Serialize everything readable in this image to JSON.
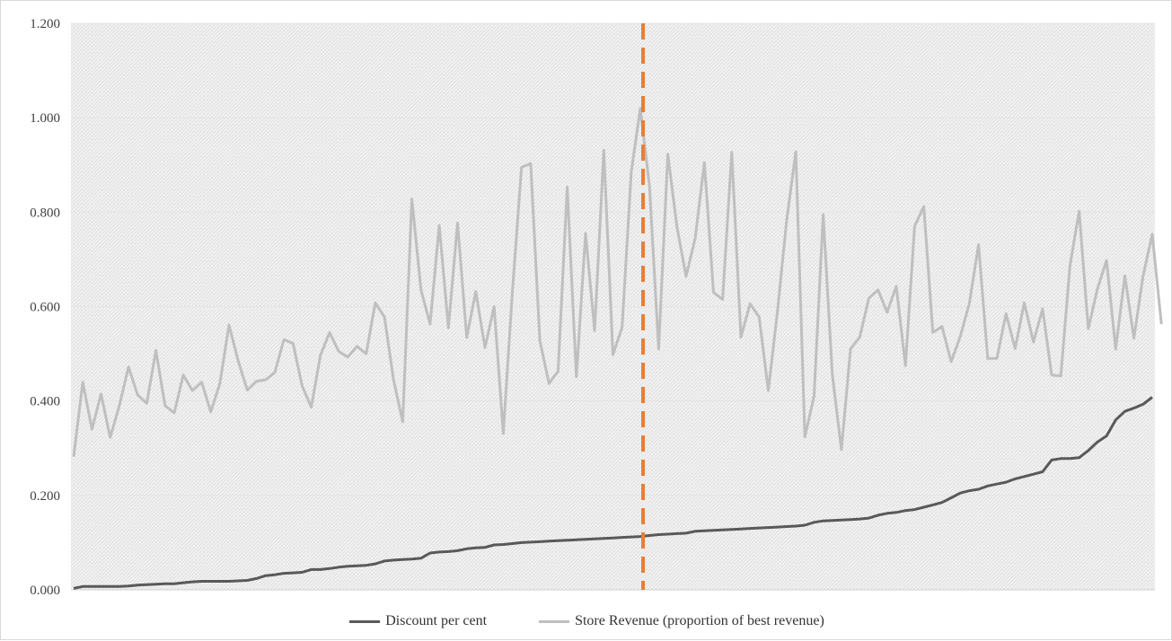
{
  "chart_data": {
    "type": "line",
    "title": "",
    "xlabel": "",
    "ylabel": "",
    "ylim": [
      0,
      1.2
    ],
    "yticks": [
      "0.000",
      "0.200",
      "0.400",
      "0.600",
      "0.800",
      "1.000",
      "1.200"
    ],
    "grid": true,
    "legend_position": "bottom",
    "marker_line": {
      "index": 62,
      "color": "#ed7d31",
      "style": "dashed"
    },
    "series": [
      {
        "name": "Discount per cent",
        "color": "#595959",
        "values": [
          0.003,
          0.007,
          0.007,
          0.007,
          0.007,
          0.007,
          0.008,
          0.01,
          0.011,
          0.012,
          0.013,
          0.013,
          0.015,
          0.017,
          0.018,
          0.018,
          0.018,
          0.018,
          0.019,
          0.02,
          0.024,
          0.03,
          0.032,
          0.035,
          0.036,
          0.037,
          0.043,
          0.043,
          0.045,
          0.048,
          0.05,
          0.051,
          0.052,
          0.055,
          0.061,
          0.063,
          0.064,
          0.065,
          0.067,
          0.078,
          0.08,
          0.081,
          0.083,
          0.087,
          0.089,
          0.09,
          0.095,
          0.096,
          0.098,
          0.1,
          0.101,
          0.102,
          0.103,
          0.104,
          0.105,
          0.106,
          0.107,
          0.108,
          0.109,
          0.11,
          0.111,
          0.112,
          0.113,
          0.115,
          0.117,
          0.118,
          0.119,
          0.12,
          0.124,
          0.125,
          0.126,
          0.127,
          0.128,
          0.129,
          0.13,
          0.131,
          0.132,
          0.133,
          0.134,
          0.135,
          0.137,
          0.143,
          0.146,
          0.147,
          0.148,
          0.149,
          0.15,
          0.152,
          0.158,
          0.162,
          0.164,
          0.168,
          0.17,
          0.175,
          0.18,
          0.185,
          0.195,
          0.205,
          0.21,
          0.213,
          0.22,
          0.224,
          0.228,
          0.235,
          0.24,
          0.245,
          0.25,
          0.275,
          0.278,
          0.278,
          0.28,
          0.295,
          0.313,
          0.326,
          0.36,
          0.378,
          0.385,
          0.393,
          0.408
        ]
      },
      {
        "name": "Store Revenue (proportion of best revenue)",
        "color": "#bfbfbf",
        "values": [
          0.282,
          0.44,
          0.34,
          0.415,
          0.323,
          0.39,
          0.472,
          0.413,
          0.395,
          0.507,
          0.39,
          0.375,
          0.455,
          0.422,
          0.44,
          0.377,
          0.437,
          0.561,
          0.485,
          0.423,
          0.442,
          0.445,
          0.46,
          0.53,
          0.522,
          0.432,
          0.387,
          0.497,
          0.545,
          0.505,
          0.493,
          0.516,
          0.5,
          0.608,
          0.578,
          0.445,
          0.356,
          0.828,
          0.635,
          0.563,
          0.772,
          0.555,
          0.777,
          0.535,
          0.632,
          0.513,
          0.6,
          0.331,
          0.63,
          0.895,
          0.903,
          0.528,
          0.437,
          0.463,
          0.853,
          0.451,
          0.755,
          0.549,
          0.931,
          0.498,
          0.556,
          0.885,
          1.02,
          0.855,
          0.51,
          0.923,
          0.77,
          0.664,
          0.745,
          0.905,
          0.63,
          0.615,
          0.927,
          0.535,
          0.606,
          0.578,
          0.422,
          0.59,
          0.782,
          0.928,
          0.324,
          0.41,
          0.795,
          0.455,
          0.297,
          0.511,
          0.535,
          0.618,
          0.635,
          0.588,
          0.643,
          0.475,
          0.77,
          0.812,
          0.545,
          0.558,
          0.483,
          0.537,
          0.607,
          0.731,
          0.49,
          0.49,
          0.585,
          0.511,
          0.608,
          0.525,
          0.595,
          0.455,
          0.453,
          0.687,
          0.802,
          0.553,
          0.637,
          0.698,
          0.51,
          0.665,
          0.533,
          0.665,
          0.753,
          0.563
        ]
      }
    ]
  }
}
